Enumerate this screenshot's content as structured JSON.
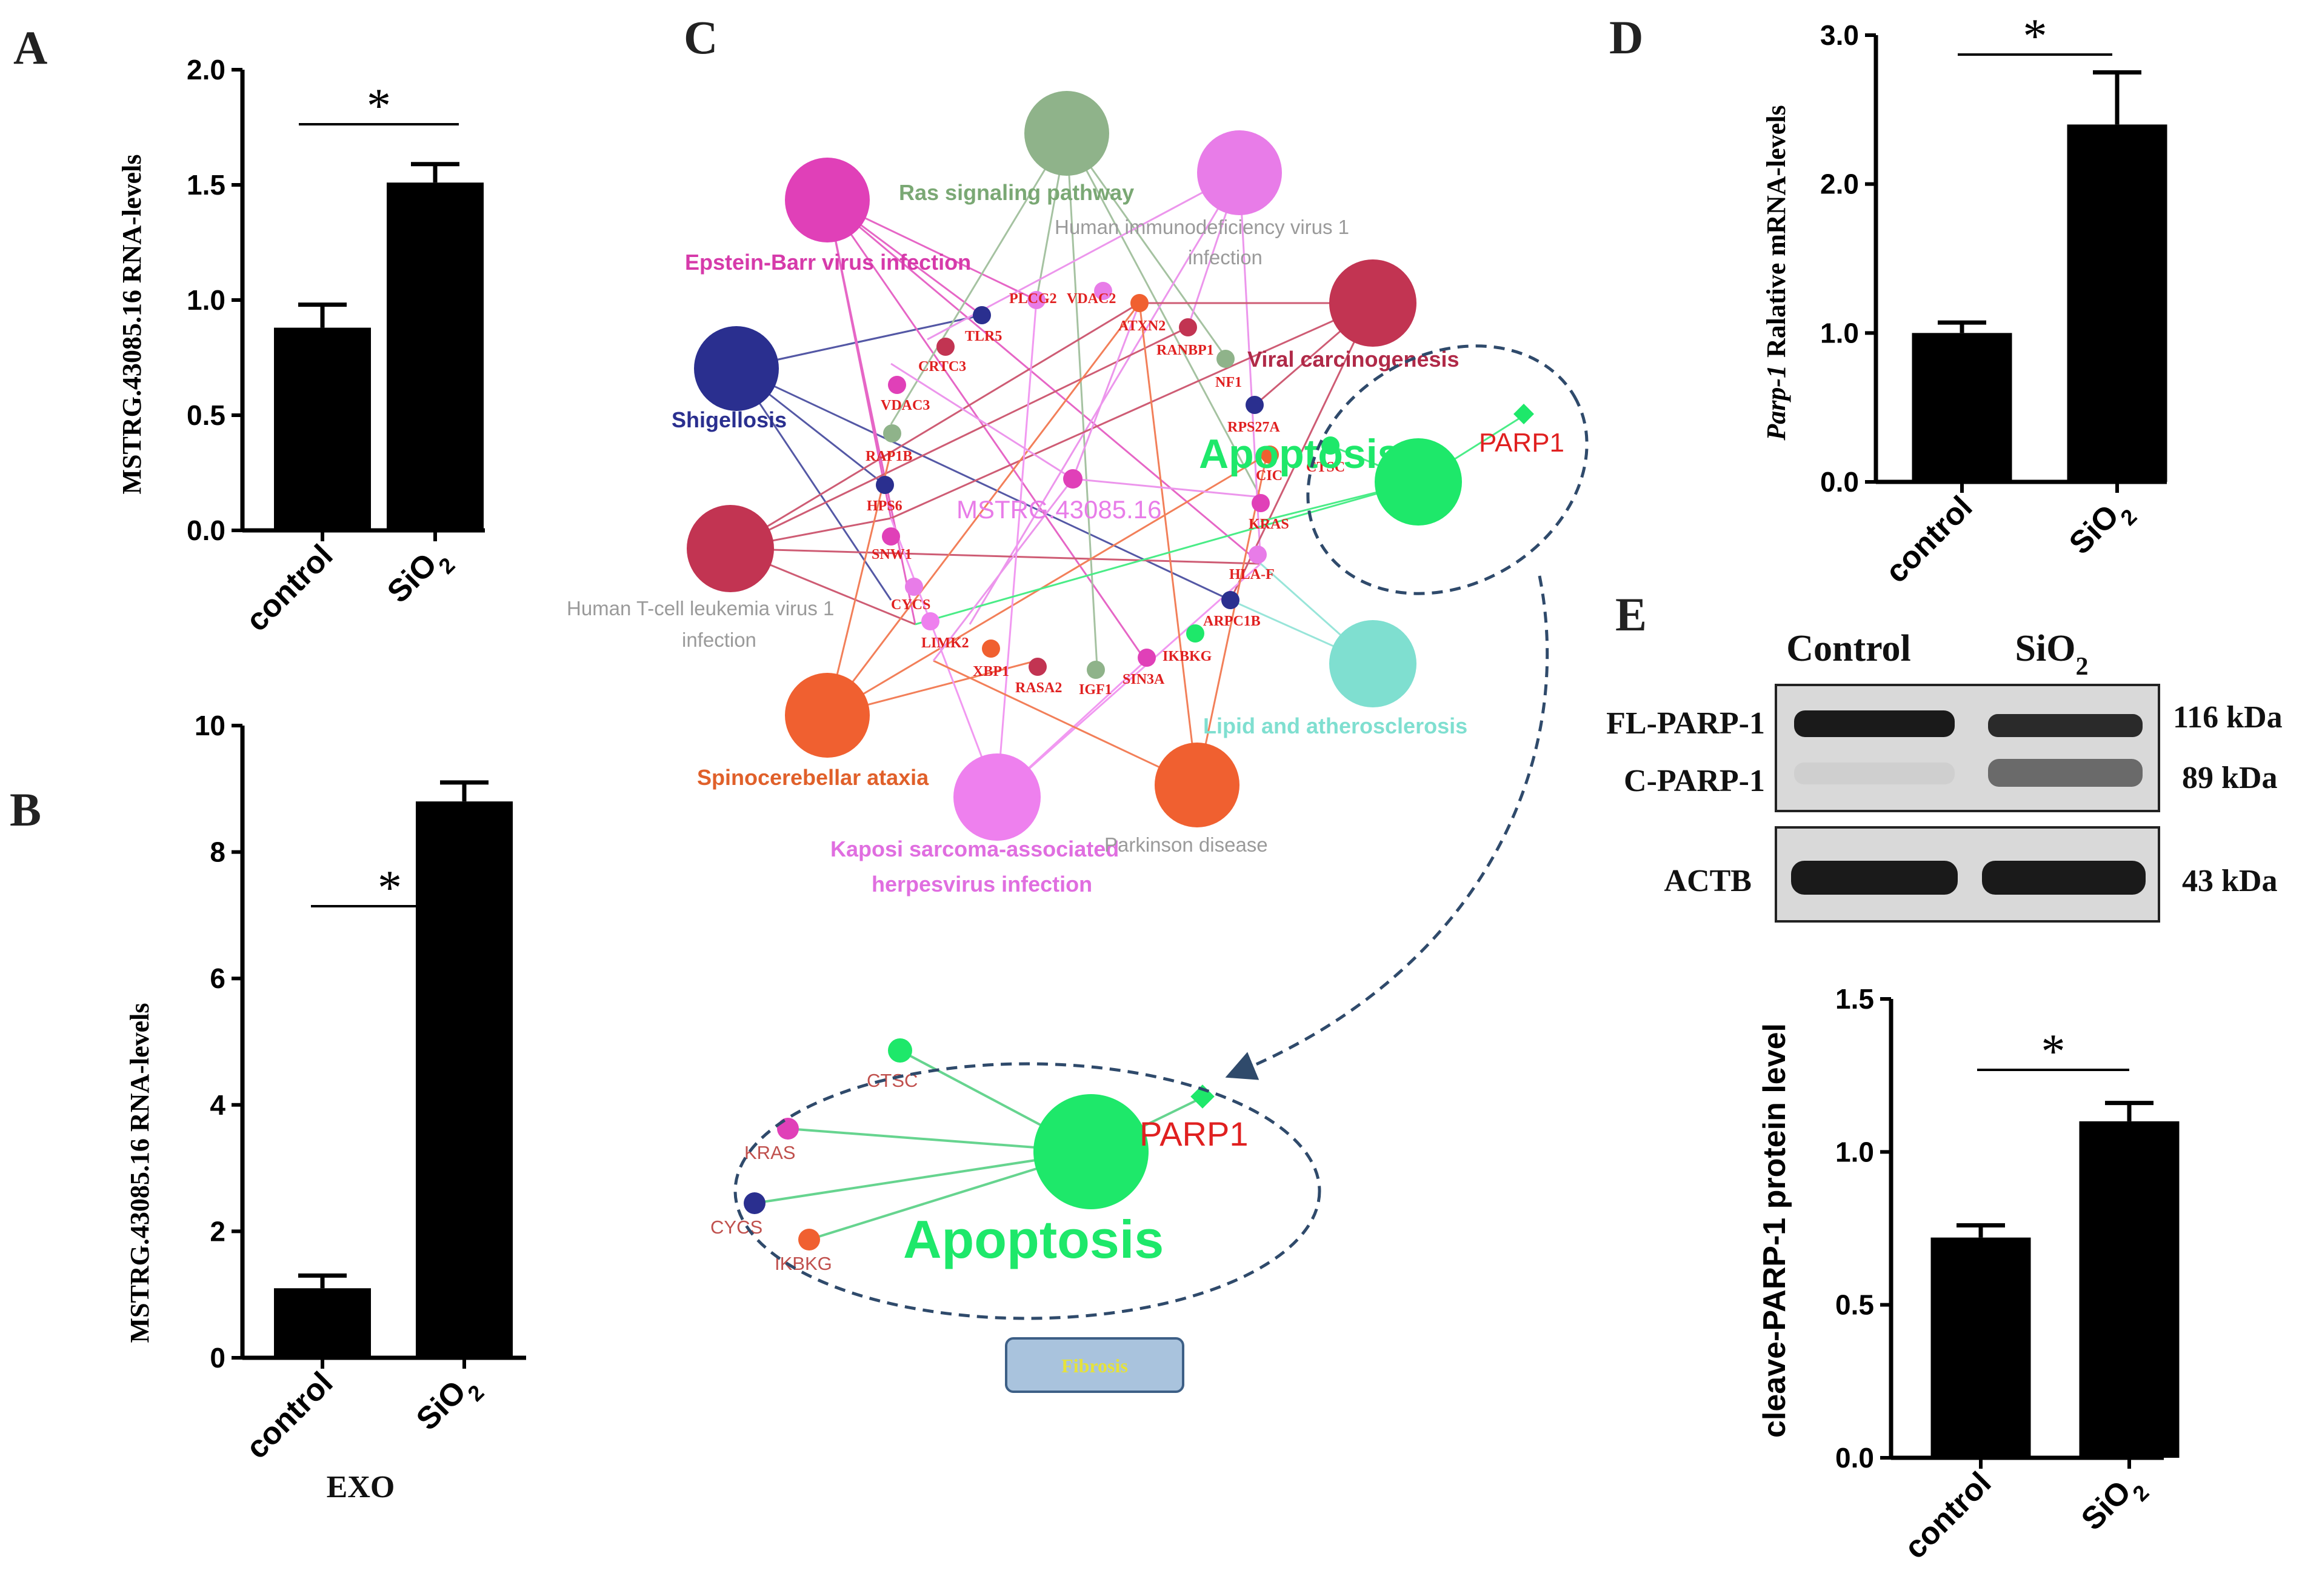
{
  "panels": {
    "A": {
      "label": "A",
      "chart_data": {
        "type": "bar",
        "categories": [
          "control",
          "SiO2"
        ],
        "values": [
          0.88,
          1.51
        ],
        "errors": [
          0.1,
          0.08
        ],
        "ylabel": "MSTRG.43085.16 RNA-levels",
        "ylim": [
          0,
          2.0
        ],
        "yticks": [
          "0.0",
          "0.5",
          "1.0",
          "1.5",
          "2.0"
        ],
        "significance": "*"
      }
    },
    "B": {
      "label": "B",
      "chart_data": {
        "type": "bar",
        "categories": [
          "control",
          "SiO2"
        ],
        "values": [
          1.1,
          8.8
        ],
        "errors": [
          0.2,
          0.3
        ],
        "ylabel": "MSTRG.43085.16 RNA-levels",
        "xlabel": "EXO",
        "ylim": [
          0,
          10
        ],
        "yticks": [
          "0",
          "2",
          "4",
          "6",
          "8",
          "10"
        ],
        "significance": "*"
      }
    },
    "C": {
      "label": "C",
      "center_node": "MSTRG.43085.16",
      "pathways": [
        {
          "name": "Ras signaling pathway",
          "color": "#8fb38a"
        },
        {
          "name": "Human immunodeficiency virus 1 infection",
          "color": "#e87ce8"
        },
        {
          "name": "Epstein-Barr virus infection",
          "color": "#e040b8"
        },
        {
          "name": "Viral carcinogenesis",
          "color": "#c23452"
        },
        {
          "name": "Shigellosis",
          "color": "#2a2f8f"
        },
        {
          "name": "Human T-cell leukemia virus 1 infection",
          "color": "#c23452"
        },
        {
          "name": "Apoptosis",
          "color": "#1ee86a"
        },
        {
          "name": "Lipid and atherosclerosis",
          "color": "#7fdfd0"
        },
        {
          "name": "Spinocerebellar ataxia",
          "color": "#f06030"
        },
        {
          "name": "Kaposi sarcoma-associated herpesvirus infection",
          "color": "#ee80ee"
        },
        {
          "name": "Parkinson disease",
          "color": "#f06030"
        }
      ],
      "genes": [
        "PLCG2",
        "VDAC2",
        "ATXN2",
        "TLR5",
        "RANBP1",
        "CRTC3",
        "NF1",
        "VDAC3",
        "RPS27A",
        "RAP1B",
        "CIC",
        "CTSC",
        "HPS6",
        "KRAS",
        "SNW1",
        "HLA-F",
        "CYCS",
        "ARPC1B",
        "LIMK2",
        "IKBKG",
        "XBP1",
        "RASA2",
        "IGF1",
        "SIN3A",
        "PARP1"
      ],
      "zoom": {
        "pathway": "Apoptosis",
        "genes": [
          "CTSC",
          "KRAS",
          "CYCS",
          "IKBKG",
          "PARP1"
        ],
        "box_label": "Fibrosis"
      }
    },
    "D": {
      "label": "D",
      "chart_data": {
        "type": "bar",
        "categories": [
          "control",
          "SiO2"
        ],
        "values": [
          1.0,
          2.4
        ],
        "errors": [
          0.07,
          0.35
        ],
        "ylabel_italic": "Parp-1",
        "ylabel": "Ralative mRNA-levels",
        "ylim": [
          0,
          3.0
        ],
        "yticks": [
          "0.0",
          "1.0",
          "2.0",
          "3.0"
        ],
        "significance": "*"
      }
    },
    "E": {
      "label": "E",
      "blot": {
        "columns": [
          "Control",
          "SiO"
        ],
        "column_sub": "2",
        "rows": [
          {
            "name": "FL-PARP-1",
            "size": "116 kDa"
          },
          {
            "name": "C-PARP-1",
            "size": "89 kDa"
          },
          {
            "name": "ACTB",
            "size": "43 kDa"
          }
        ]
      },
      "chart_data": {
        "type": "bar",
        "categories": [
          "control",
          "SiO2"
        ],
        "values": [
          0.72,
          1.1
        ],
        "errors": [
          0.04,
          0.06
        ],
        "ylabel": "cleave-PARP-1 protein level",
        "ylim": [
          0,
          1.5
        ],
        "yticks": [
          "0.0",
          "0.5",
          "1.0",
          "1.5"
        ],
        "significance": "*"
      }
    }
  },
  "category_text": {
    "control": "control",
    "sio": "SiO",
    "sub": "2"
  }
}
